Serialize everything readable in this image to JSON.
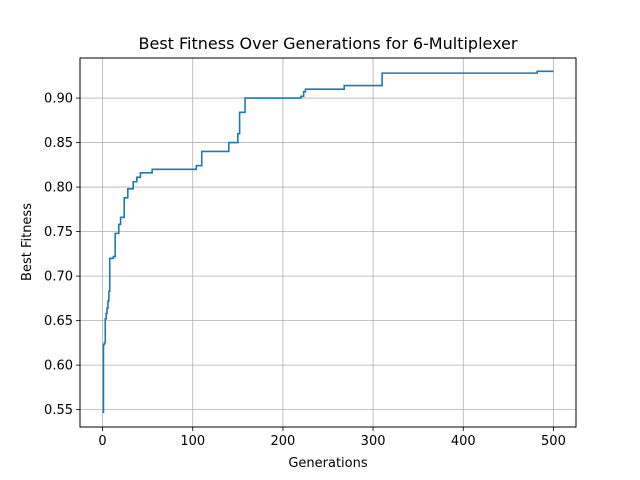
{
  "chart_data": {
    "type": "line",
    "title": "Best Fitness Over Generations for 6-Multiplexer",
    "xlabel": "Generations",
    "ylabel": "Best Fitness",
    "xlim": [
      -25,
      525
    ],
    "ylim": [
      0.5305,
      0.945
    ],
    "xticks": [
      0,
      100,
      200,
      300,
      400,
      500
    ],
    "yticks": [
      0.55,
      0.6,
      0.65,
      0.7,
      0.75,
      0.8,
      0.85,
      0.9
    ],
    "ytick_labels": [
      "0.55",
      "0.60",
      "0.65",
      "0.70",
      "0.75",
      "0.80",
      "0.85",
      "0.90"
    ],
    "grid": true,
    "line_color": "#1f77b4",
    "series": [
      {
        "x": [
          0,
          1,
          1,
          2,
          2,
          3,
          3,
          4,
          4,
          5,
          5,
          6,
          6,
          7,
          7,
          8,
          8,
          12,
          12,
          14,
          14,
          18,
          18,
          20,
          20,
          24,
          24,
          28,
          28,
          34,
          34,
          38,
          38,
          42,
          42,
          55,
          55,
          104,
          104,
          110,
          110,
          140,
          140,
          150,
          150,
          152,
          152,
          158,
          158,
          220,
          220,
          223,
          223,
          225,
          225,
          268,
          268,
          310,
          310,
          482,
          482,
          500
        ],
        "y": [
          0.547,
          0.547,
          0.623,
          0.623,
          0.625,
          0.625,
          0.652,
          0.652,
          0.658,
          0.658,
          0.664,
          0.664,
          0.672,
          0.672,
          0.683,
          0.683,
          0.72,
          0.72,
          0.722,
          0.722,
          0.748,
          0.748,
          0.758,
          0.758,
          0.766,
          0.766,
          0.788,
          0.788,
          0.798,
          0.798,
          0.806,
          0.806,
          0.811,
          0.811,
          0.816,
          0.816,
          0.82,
          0.82,
          0.824,
          0.824,
          0.84,
          0.84,
          0.85,
          0.85,
          0.86,
          0.86,
          0.884,
          0.884,
          0.9,
          0.9,
          0.902,
          0.902,
          0.907,
          0.907,
          0.91,
          0.91,
          0.914,
          0.914,
          0.928,
          0.928,
          0.93,
          0.93
        ]
      }
    ]
  }
}
